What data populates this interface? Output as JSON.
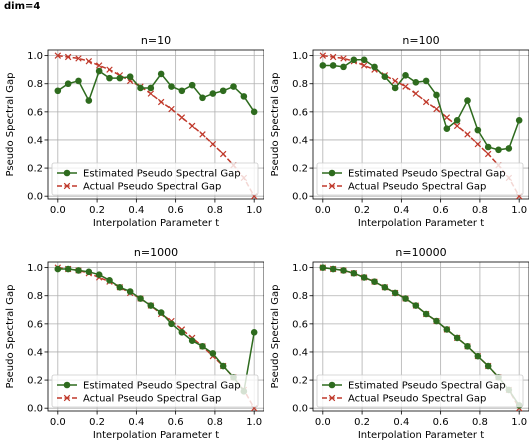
{
  "figure_title": "dim=4",
  "colors": {
    "estimated": "#2e6b1e",
    "actual": "#c0392b",
    "grid": "#b0b0b0"
  },
  "chart_data": [
    {
      "type": "line",
      "title": "n=10",
      "xlabel": "Interpolation Parameter t",
      "ylabel": "Pseudo Spectral Gap",
      "xlim": [
        -0.05,
        1.05
      ],
      "ylim": [
        -0.02,
        1.04
      ],
      "xticks": [
        "0.0",
        "0.2",
        "0.4",
        "0.6",
        "0.8",
        "1.0"
      ],
      "yticks": [
        "0.0",
        "0.2",
        "0.4",
        "0.6",
        "0.8",
        "1.0"
      ],
      "grid": true,
      "legend_position": "lower-left",
      "x": [
        0.0,
        0.0526,
        0.1053,
        0.1579,
        0.2105,
        0.2632,
        0.3158,
        0.3684,
        0.4211,
        0.4737,
        0.5263,
        0.5789,
        0.6316,
        0.6842,
        0.7368,
        0.7895,
        0.8421,
        0.8947,
        0.9474,
        1.0
      ],
      "series": [
        {
          "name": "Estimated Pseudo Spectral Gap",
          "marker": "circle",
          "values": [
            0.75,
            0.8,
            0.82,
            0.68,
            0.89,
            0.84,
            0.84,
            0.85,
            0.77,
            0.77,
            0.87,
            0.78,
            0.75,
            0.79,
            0.7,
            0.73,
            0.75,
            0.78,
            0.71,
            0.6
          ]
        },
        {
          "name": "Actual Pseudo Spectral Gap",
          "marker": "x",
          "dashed": true,
          "values": [
            1.0,
            0.99,
            0.98,
            0.96,
            0.93,
            0.9,
            0.86,
            0.82,
            0.78,
            0.73,
            0.67,
            0.62,
            0.56,
            0.5,
            0.44,
            0.37,
            0.3,
            0.22,
            0.13,
            0.0
          ]
        }
      ]
    },
    {
      "type": "line",
      "title": "n=100",
      "xlabel": "Interpolation Parameter t",
      "ylabel": "Pseudo Spectral Gap",
      "xlim": [
        -0.05,
        1.05
      ],
      "ylim": [
        -0.02,
        1.04
      ],
      "xticks": [
        "0.0",
        "0.2",
        "0.4",
        "0.6",
        "0.8",
        "1.0"
      ],
      "yticks": [
        "0.0",
        "0.2",
        "0.4",
        "0.6",
        "0.8",
        "1.0"
      ],
      "grid": true,
      "legend_position": "lower-left",
      "x": [
        0.0,
        0.0526,
        0.1053,
        0.1579,
        0.2105,
        0.2632,
        0.3158,
        0.3684,
        0.4211,
        0.4737,
        0.5263,
        0.5789,
        0.6316,
        0.6842,
        0.7368,
        0.7895,
        0.8421,
        0.8947,
        0.9474,
        1.0
      ],
      "series": [
        {
          "name": "Estimated Pseudo Spectral Gap",
          "marker": "circle",
          "values": [
            0.93,
            0.93,
            0.92,
            0.97,
            0.97,
            0.92,
            0.85,
            0.77,
            0.86,
            0.81,
            0.82,
            0.72,
            0.48,
            0.54,
            0.68,
            0.47,
            0.35,
            0.33,
            0.34,
            0.54
          ]
        },
        {
          "name": "Actual Pseudo Spectral Gap",
          "marker": "x",
          "dashed": true,
          "values": [
            1.0,
            0.99,
            0.98,
            0.96,
            0.93,
            0.9,
            0.86,
            0.82,
            0.78,
            0.73,
            0.67,
            0.62,
            0.56,
            0.5,
            0.44,
            0.37,
            0.3,
            0.22,
            0.13,
            0.0
          ]
        }
      ]
    },
    {
      "type": "line",
      "title": "n=1000",
      "xlabel": "Interpolation Parameter t",
      "ylabel": "Pseudo Spectral Gap",
      "xlim": [
        -0.05,
        1.05
      ],
      "ylim": [
        -0.02,
        1.04
      ],
      "xticks": [
        "0.0",
        "0.2",
        "0.4",
        "0.6",
        "0.8",
        "1.0"
      ],
      "yticks": [
        "0.0",
        "0.2",
        "0.4",
        "0.6",
        "0.8",
        "1.0"
      ],
      "grid": true,
      "legend_position": "lower-left",
      "x": [
        0.0,
        0.0526,
        0.1053,
        0.1579,
        0.2105,
        0.2632,
        0.3158,
        0.3684,
        0.4211,
        0.4737,
        0.5263,
        0.5789,
        0.6316,
        0.6842,
        0.7368,
        0.7895,
        0.8421,
        0.8947,
        0.9474,
        1.0
      ],
      "series": [
        {
          "name": "Estimated Pseudo Spectral Gap",
          "marker": "circle",
          "values": [
            0.99,
            0.99,
            0.98,
            0.97,
            0.95,
            0.91,
            0.86,
            0.83,
            0.78,
            0.73,
            0.68,
            0.6,
            0.54,
            0.48,
            0.44,
            0.39,
            0.3,
            0.22,
            0.12,
            0.54
          ]
        },
        {
          "name": "Actual Pseudo Spectral Gap",
          "marker": "x",
          "dashed": true,
          "values": [
            1.0,
            0.99,
            0.98,
            0.96,
            0.93,
            0.9,
            0.86,
            0.82,
            0.78,
            0.73,
            0.67,
            0.62,
            0.56,
            0.5,
            0.44,
            0.37,
            0.3,
            0.22,
            0.13,
            0.0
          ]
        }
      ]
    },
    {
      "type": "line",
      "title": "n=10000",
      "xlabel": "Interpolation Parameter t",
      "ylabel": "Pseudo Spectral Gap",
      "xlim": [
        -0.05,
        1.05
      ],
      "ylim": [
        -0.02,
        1.04
      ],
      "xticks": [
        "0.0",
        "0.2",
        "0.4",
        "0.6",
        "0.8",
        "1.0"
      ],
      "yticks": [
        "0.0",
        "0.2",
        "0.4",
        "0.6",
        "0.8",
        "1.0"
      ],
      "grid": true,
      "legend_position": "lower-left",
      "x": [
        0.0,
        0.0526,
        0.1053,
        0.1579,
        0.2105,
        0.2632,
        0.3158,
        0.3684,
        0.4211,
        0.4737,
        0.5263,
        0.5789,
        0.6316,
        0.6842,
        0.7368,
        0.7895,
        0.8421,
        0.8947,
        0.9474,
        1.0
      ],
      "series": [
        {
          "name": "Estimated Pseudo Spectral Gap",
          "marker": "circle",
          "values": [
            1.0,
            0.99,
            0.98,
            0.96,
            0.93,
            0.9,
            0.86,
            0.82,
            0.78,
            0.73,
            0.67,
            0.62,
            0.56,
            0.5,
            0.44,
            0.37,
            0.3,
            0.22,
            0.13,
            0.02
          ]
        },
        {
          "name": "Actual Pseudo Spectral Gap",
          "marker": "x",
          "dashed": true,
          "values": [
            1.0,
            0.99,
            0.98,
            0.96,
            0.93,
            0.9,
            0.86,
            0.82,
            0.78,
            0.73,
            0.67,
            0.62,
            0.56,
            0.5,
            0.44,
            0.37,
            0.3,
            0.22,
            0.13,
            0.0
          ]
        }
      ]
    }
  ]
}
